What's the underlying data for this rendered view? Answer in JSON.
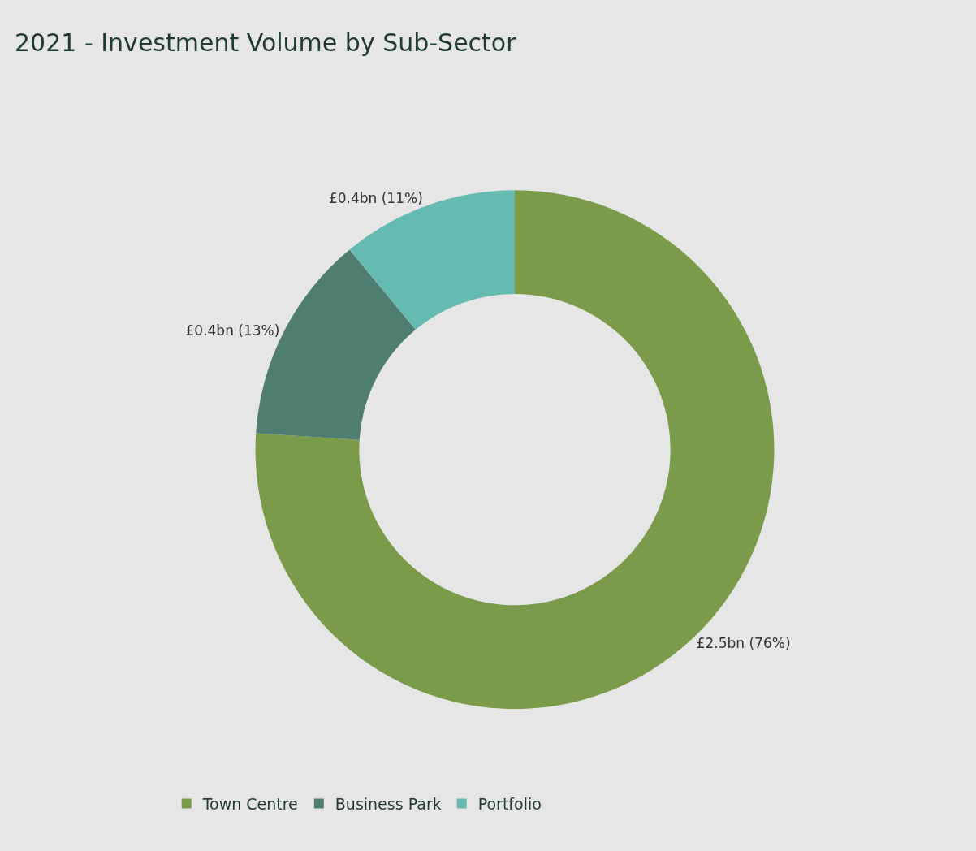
{
  "chart_data": {
    "type": "donut",
    "title": "2021 - Investment Volume by Sub-Sector",
    "categories": [
      "Town Centre",
      "Business Park",
      "Portfolio"
    ],
    "values": [
      76,
      13,
      11
    ],
    "value_labels": [
      "£2.5bn (76%)",
      "£0.4bn (13%)",
      "£0.4bn (11%)"
    ],
    "colors": [
      "#7a9c4a",
      "#4f7d6f",
      "#65bbb1"
    ],
    "legend": "bottom left"
  }
}
